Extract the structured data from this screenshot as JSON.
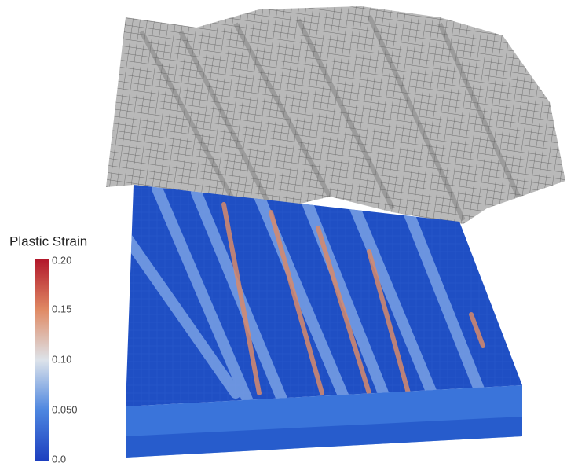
{
  "legend": {
    "title": "Plastic Strain",
    "ticks": [
      "0.20",
      "0.15",
      "0.10",
      "0.050",
      "0.0"
    ]
  }
}
